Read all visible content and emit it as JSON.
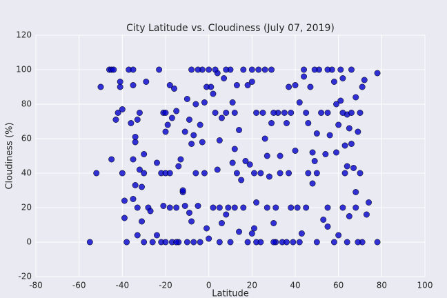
{
  "chart_data": {
    "type": "scatter",
    "title": "City Latitude vs. Cloudiness (July 07, 2019)",
    "x_label": "Latitude",
    "y_label": "Cloudiness (%)",
    "xlim": [
      -80,
      100
    ],
    "ylim": [
      -20,
      120
    ],
    "xticks": [
      -80,
      -60,
      -40,
      -20,
      0,
      20,
      40,
      60,
      80,
      100
    ],
    "yticks": [
      -20,
      0,
      20,
      40,
      60,
      80,
      100,
      120
    ],
    "grid": true,
    "color": "#0000cc",
    "x": [
      -55,
      -52,
      -50,
      -46,
      -45,
      -45,
      -44,
      -43,
      -42,
      -41,
      -41,
      -40,
      -40,
      -39,
      -39,
      -38,
      -37,
      -36,
      -35,
      -35,
      -35,
      -34,
      -34,
      -34,
      -33,
      -33,
      -33,
      -32,
      -32,
      -31,
      -31,
      -30,
      -30,
      -29,
      -28,
      -27,
      -26,
      -24,
      -24,
      -23,
      -22,
      -22,
      -21,
      -21,
      -20,
      -20,
      -19,
      -18,
      -18,
      -17,
      -17,
      -16,
      -15,
      -14,
      -14,
      -13,
      -12,
      -12,
      -11,
      -11,
      -10,
      -9,
      -9,
      -8,
      -8,
      -8,
      -7,
      -6,
      -6,
      -5,
      -4,
      -4,
      -3,
      -3,
      -2,
      -2,
      -1,
      -1,
      0,
      0,
      1,
      2,
      2,
      3,
      4,
      4,
      5,
      5,
      6,
      6,
      7,
      8,
      8,
      9,
      10,
      10,
      11,
      11,
      12,
      12,
      13,
      14,
      14,
      15,
      16,
      16,
      17,
      18,
      18,
      19,
      20,
      20,
      21,
      21,
      22,
      22,
      23,
      24,
      25,
      26,
      27,
      27,
      28,
      29,
      29,
      30,
      31,
      32,
      33,
      33,
      34,
      35,
      36,
      37,
      38,
      39,
      40,
      40,
      41,
      42,
      43,
      44,
      45,
      46,
      47,
      48,
      48,
      49,
      50,
      50,
      51,
      52,
      53,
      54,
      55,
      56,
      57,
      58,
      59,
      59,
      60,
      60,
      61,
      62,
      62,
      63,
      64,
      64,
      65,
      65,
      66,
      67,
      68,
      68,
      69,
      70,
      70,
      71,
      71,
      72,
      73,
      74,
      78,
      78,
      -20,
      -15,
      -10,
      -7,
      22,
      30,
      36,
      42,
      50,
      58,
      64,
      69,
      -35,
      -5,
      3,
      8,
      20,
      26,
      44,
      49,
      55,
      61,
      66,
      -20,
      12,
      30,
      45,
      55,
      62,
      66,
      -30,
      -18,
      13,
      24,
      37,
      46,
      63,
      -15,
      5,
      31,
      38,
      55,
      68
    ],
    "values": [
      0,
      40,
      90,
      100,
      48,
      100,
      100,
      71,
      75,
      93,
      90,
      77,
      40,
      14,
      24,
      0,
      100,
      69,
      25,
      48,
      91,
      58,
      61,
      33,
      71,
      20,
      4,
      42,
      75,
      32,
      12,
      51,
      0,
      93,
      20,
      18,
      0,
      4,
      46,
      100,
      40,
      0,
      21,
      75,
      64,
      40,
      68,
      91,
      20,
      72,
      0,
      89,
      76,
      0,
      44,
      48,
      29,
      30,
      64,
      21,
      83,
      17,
      71,
      12,
      57,
      100,
      62,
      80,
      40,
      21,
      0,
      68,
      58,
      100,
      81,
      40,
      90,
      8,
      2,
      100,
      90,
      20,
      86,
      75,
      42,
      98,
      59,
      0,
      11,
      72,
      95,
      16,
      75,
      20,
      100,
      0,
      81,
      46,
      54,
      20,
      91,
      65,
      6,
      36,
      100,
      20,
      47,
      91,
      0,
      45,
      5,
      93,
      40,
      8,
      23,
      75,
      100,
      0,
      75,
      60,
      20,
      50,
      38,
      69,
      100,
      11,
      0,
      75,
      50,
      40,
      0,
      75,
      69,
      90,
      75,
      0,
      91,
      53,
      20,
      81,
      5,
      96,
      20,
      69,
      90,
      34,
      52,
      47,
      63,
      40,
      100,
      75,
      13,
      51,
      9,
      62,
      100,
      93,
      52,
      80,
      68,
      4,
      82,
      95,
      20,
      56,
      74,
      44,
      66,
      15,
      57,
      43,
      84,
      29,
      64,
      75,
      40,
      90,
      0,
      94,
      16,
      23,
      98,
      0,
      0,
      0,
      0,
      0,
      0,
      0,
      0,
      0,
      0,
      0,
      0,
      0,
      100,
      100,
      100,
      100,
      100,
      100,
      100,
      100,
      100,
      100,
      100,
      75,
      75,
      75,
      75,
      75,
      75,
      75,
      40,
      40,
      40,
      40,
      40,
      40,
      40,
      20,
      20,
      20,
      20,
      20,
      20
    ]
  }
}
